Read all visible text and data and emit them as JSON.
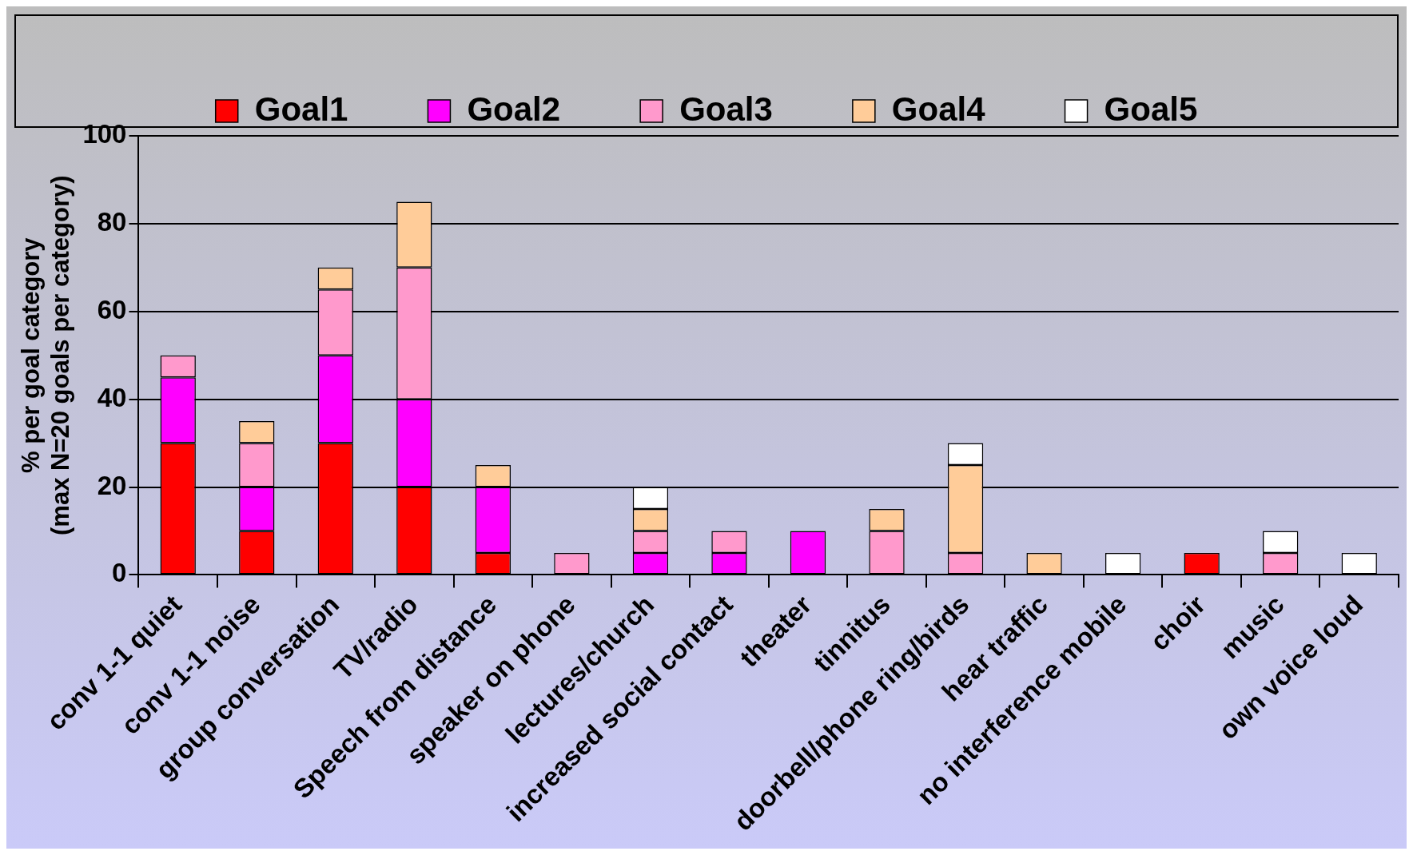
{
  "chart_data": {
    "type": "bar",
    "stacked": true,
    "ylabel": "% per goal category\n(max N=20 goals per category)",
    "categories": [
      "conv 1-1 quiet",
      "conv 1-1 noise",
      "group conversation",
      "TV/radio",
      "Speech from distance",
      "speaker on phone",
      "lectures/church",
      "increased social contact",
      "theater",
      "tinnitus",
      "doorbell/phone ring/birds",
      "hear traffic",
      "no interference mobile",
      "choir",
      "music",
      "own voice loud"
    ],
    "series": [
      {
        "name": "Goal1",
        "color": "#ff0000",
        "values": [
          30,
          10,
          30,
          20,
          5,
          null,
          null,
          null,
          null,
          null,
          null,
          null,
          null,
          5,
          null,
          null
        ]
      },
      {
        "name": "Goal2",
        "color": "#ff00ff",
        "values": [
          15,
          10,
          20,
          20,
          15,
          null,
          5,
          5,
          10,
          null,
          null,
          null,
          null,
          null,
          null,
          null
        ]
      },
      {
        "name": "Goal3",
        "color": "#ff99cc",
        "values": [
          5,
          10,
          15,
          30,
          null,
          5,
          5,
          5,
          null,
          10,
          5,
          null,
          null,
          null,
          5,
          null
        ]
      },
      {
        "name": "Goal4",
        "color": "#ffcc99",
        "values": [
          null,
          5,
          5,
          15,
          5,
          null,
          5,
          null,
          null,
          5,
          20,
          5,
          null,
          null,
          null,
          null
        ]
      },
      {
        "name": "Goal5",
        "color": "#ffffff",
        "values": [
          null,
          null,
          null,
          null,
          null,
          null,
          5,
          null,
          null,
          null,
          5,
          null,
          5,
          null,
          5,
          5
        ]
      }
    ],
    "ylim": [
      0,
      100
    ],
    "yticks": [
      0,
      20,
      40,
      60,
      80,
      100
    ],
    "grid": "y",
    "legend": "top"
  }
}
